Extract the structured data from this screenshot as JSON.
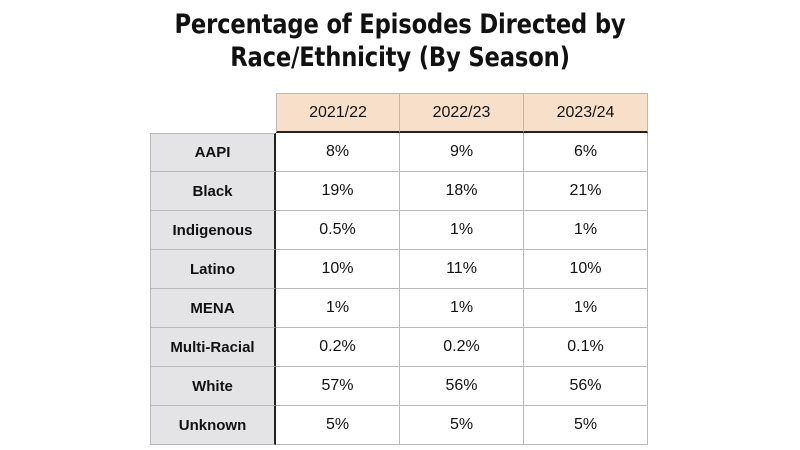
{
  "chart_data": {
    "type": "table",
    "title_lines": [
      "Percentage of Episodes Directed by",
      "Race/Ethnicity (By Season)"
    ],
    "columns": [
      "2021/22",
      "2022/23",
      "2023/24"
    ],
    "rows": [
      {
        "label": "AAPI",
        "cells": [
          "8%",
          "9%",
          "6%"
        ]
      },
      {
        "label": "Black",
        "cells": [
          "19%",
          "18%",
          "21%"
        ]
      },
      {
        "label": "Indigenous",
        "cells": [
          "0.5%",
          "1%",
          "1%"
        ]
      },
      {
        "label": "Latino",
        "cells": [
          "10%",
          "11%",
          "10%"
        ]
      },
      {
        "label": "MENA",
        "cells": [
          "1%",
          "1%",
          "1%"
        ]
      },
      {
        "label": "Multi-Racial",
        "cells": [
          "0.2%",
          "0.2%",
          "0.1%"
        ]
      },
      {
        "label": "White",
        "cells": [
          "57%",
          "56%",
          "56%"
        ]
      },
      {
        "label": "Unknown",
        "cells": [
          "5%",
          "5%",
          "5%"
        ]
      }
    ],
    "colors": {
      "header_fill": "#f7dfc9",
      "row_label_fill": "#e4e4e6",
      "divider": "#222222"
    }
  }
}
